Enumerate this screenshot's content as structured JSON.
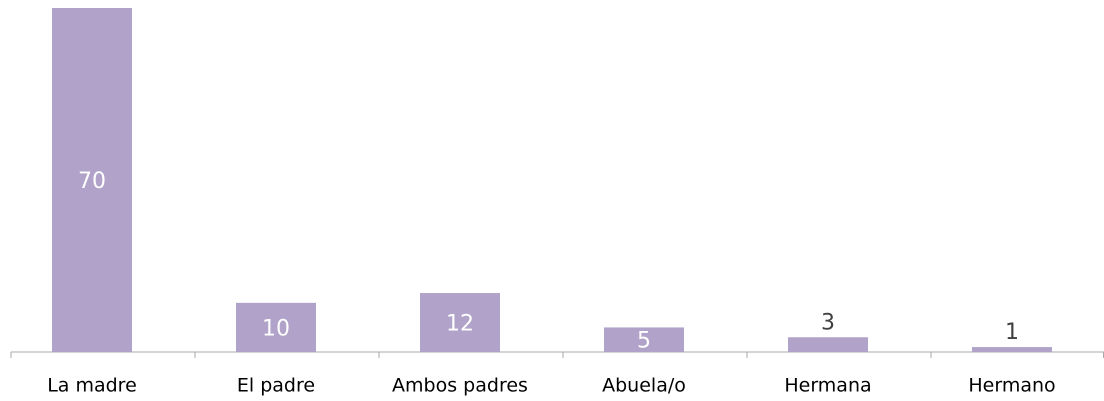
{
  "chart_data": {
    "type": "bar",
    "categories": [
      "La madre",
      "El padre",
      "Ambos padres",
      "Abuela/o",
      "Hermana",
      "Hermano"
    ],
    "values": [
      70,
      10,
      12,
      5,
      3,
      1
    ],
    "color": "#b0a2c9"
  }
}
